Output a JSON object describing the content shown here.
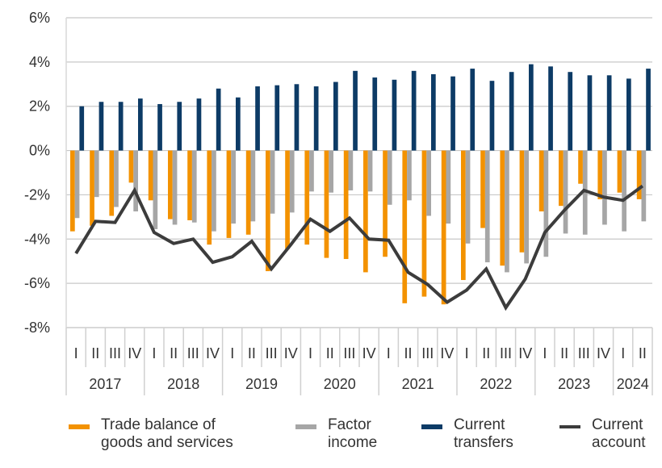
{
  "chart_data": {
    "type": "bar+line",
    "title": "",
    "xlabel": "",
    "ylabel": "",
    "ylim": [
      -8,
      6
    ],
    "yticks": [
      "-8%",
      "-6%",
      "-4%",
      "-2%",
      "0%",
      "2%",
      "4%",
      "6%"
    ],
    "ytick_values": [
      -8,
      -6,
      -4,
      -2,
      0,
      2,
      4,
      6
    ],
    "grid": true,
    "legend_position": "bottom",
    "years": [
      "2017",
      "2018",
      "2019",
      "2020",
      "2021",
      "2022",
      "2023",
      "2024"
    ],
    "quarters_per_year": [
      4,
      4,
      4,
      4,
      4,
      4,
      4,
      2
    ],
    "quarter_labels": [
      "I",
      "II",
      "III",
      "IV"
    ],
    "series": [
      {
        "name": "Trade balance of goods and services",
        "type": "bar",
        "color": "#F39200",
        "values": [
          -3.65,
          -3.4,
          -2.95,
          -1.45,
          -2.25,
          -3.1,
          -3.15,
          -4.25,
          -3.95,
          -3.8,
          -5.45,
          -4.45,
          -4.25,
          -4.85,
          -4.9,
          -5.5,
          -4.8,
          -6.9,
          -6.6,
          -6.95,
          -5.85,
          -3.5,
          -5.2,
          -4.6,
          -2.75,
          -2.5,
          -1.5,
          -2.2,
          -1.9,
          -2.2
        ]
      },
      {
        "name": "Factor income",
        "type": "bar",
        "color": "#A6A6A6",
        "values": [
          -3.05,
          -2.1,
          -2.55,
          -2.75,
          -3.55,
          -3.35,
          -3.25,
          -3.65,
          -3.3,
          -3.2,
          -2.85,
          -2.8,
          -1.85,
          -1.9,
          -1.8,
          -1.85,
          -2.45,
          -2.25,
          -2.95,
          -3.3,
          -4.2,
          -5.05,
          -5.5,
          -5.1,
          -4.8,
          -3.75,
          -3.8,
          -3.35,
          -3.65,
          -3.2
        ]
      },
      {
        "name": "Current transfers",
        "type": "bar",
        "color": "#0D3B66",
        "values": [
          2.0,
          2.2,
          2.2,
          2.35,
          2.1,
          2.2,
          2.35,
          2.8,
          2.4,
          2.9,
          2.95,
          3.0,
          2.9,
          3.1,
          3.6,
          3.3,
          3.2,
          3.6,
          3.45,
          3.35,
          3.7,
          3.15,
          3.55,
          3.9,
          3.8,
          3.55,
          3.4,
          3.4,
          3.25,
          3.7
        ]
      },
      {
        "name": "Current account",
        "type": "line",
        "color": "#3C3C3C",
        "values": [
          -4.65,
          -3.2,
          -3.25,
          -1.8,
          -3.7,
          -4.2,
          -4.0,
          -5.05,
          -4.8,
          -4.1,
          -5.35,
          -4.25,
          -3.1,
          -3.65,
          -3.05,
          -4.0,
          -4.05,
          -5.5,
          -6.05,
          -6.85,
          -6.3,
          -5.35,
          -7.1,
          -5.8,
          -3.7,
          -2.7,
          -1.8,
          -2.1,
          -2.25,
          -1.6
        ]
      }
    ]
  },
  "legend": {
    "trade_line1": "Trade balance of",
    "trade_line2": "goods and services",
    "factor_line1": "Factor",
    "factor_line2": "income",
    "transfers_line1": "Current",
    "transfers_line2": "transfers",
    "account_line1": "Current",
    "account_line2": "account"
  }
}
